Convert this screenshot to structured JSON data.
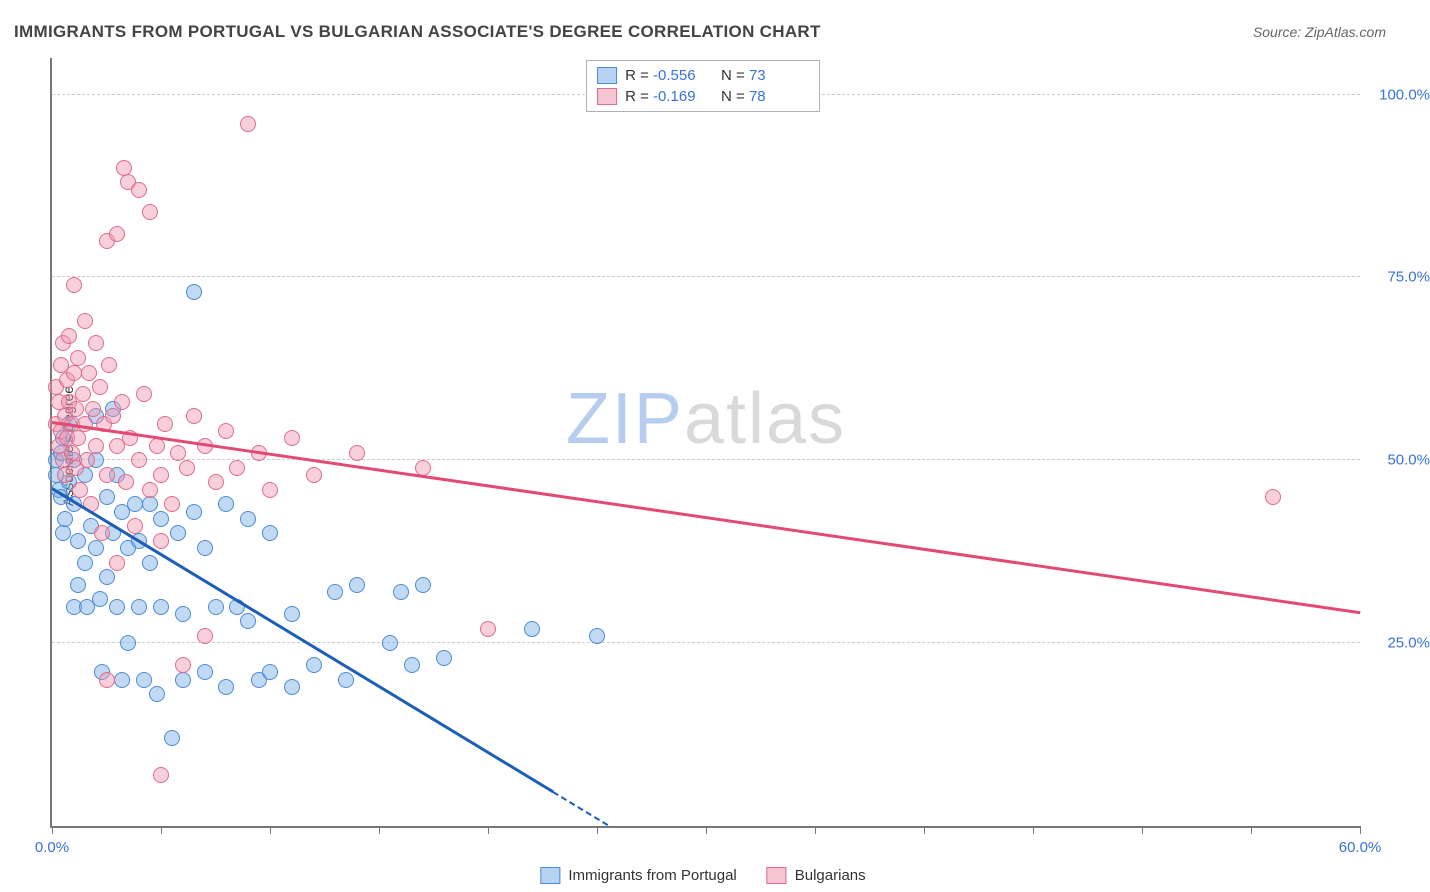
{
  "title": "IMMIGRANTS FROM PORTUGAL VS BULGARIAN ASSOCIATE'S DEGREE CORRELATION CHART",
  "source": "Source: ZipAtlas.com",
  "ylabel": "Associate's Degree",
  "watermark": {
    "pre": "ZIP",
    "post": "atlas",
    "pre_color": "#b7cdef",
    "post_color": "#d9d9d9"
  },
  "chart": {
    "type": "scatter",
    "background_color": "#ffffff",
    "grid_color": "#cccccc",
    "axis_color": "#777777",
    "tick_label_color": "#3973d4",
    "xlim": [
      0,
      60
    ],
    "ylim": [
      0,
      105
    ],
    "xticks": [
      0,
      5,
      10,
      15,
      20,
      25,
      30,
      35,
      40,
      45,
      50,
      55,
      60
    ],
    "xtick_labels": {
      "0": "0.0%",
      "60": "60.0%"
    },
    "yticks": [
      25,
      50,
      75,
      100
    ],
    "ytick_labels": {
      "25": "25.0%",
      "50": "50.0%",
      "75": "75.0%",
      "100": "100.0%"
    },
    "series": [
      {
        "name": "Immigrants from Portugal",
        "key": "portugal",
        "marker_fill": "rgba(120,170,230,0.45)",
        "marker_stroke": "#4a8bd6",
        "swatch_fill": "#b8d2f2",
        "swatch_stroke": "#4a8bd6",
        "R": "-0.556",
        "N": "73",
        "trend": {
          "x1": 0,
          "y1": 46,
          "x2": 25.5,
          "y2": 0,
          "color": "#1d5fb8",
          "dash_after_x": 23
        },
        "points": [
          [
            0.2,
            50
          ],
          [
            0.2,
            48
          ],
          [
            0.3,
            46
          ],
          [
            0.4,
            51
          ],
          [
            0.4,
            45
          ],
          [
            0.5,
            40
          ],
          [
            0.5,
            53
          ],
          [
            0.6,
            42
          ],
          [
            0.8,
            47
          ],
          [
            0.8,
            55
          ],
          [
            1.0,
            50
          ],
          [
            1.0,
            44
          ],
          [
            1.0,
            30
          ],
          [
            1.2,
            39
          ],
          [
            1.2,
            33
          ],
          [
            1.5,
            48
          ],
          [
            1.5,
            36
          ],
          [
            1.6,
            30
          ],
          [
            1.8,
            41
          ],
          [
            2.0,
            56
          ],
          [
            2.0,
            50
          ],
          [
            2.0,
            38
          ],
          [
            2.2,
            31
          ],
          [
            2.3,
            21
          ],
          [
            2.5,
            34
          ],
          [
            2.5,
            45
          ],
          [
            2.8,
            57
          ],
          [
            2.8,
            40
          ],
          [
            3.0,
            48
          ],
          [
            3.0,
            30
          ],
          [
            3.2,
            43
          ],
          [
            3.2,
            20
          ],
          [
            3.5,
            38
          ],
          [
            3.5,
            25
          ],
          [
            3.8,
            44
          ],
          [
            4.0,
            39
          ],
          [
            4.0,
            30
          ],
          [
            4.2,
            20
          ],
          [
            4.5,
            36
          ],
          [
            4.5,
            44
          ],
          [
            4.8,
            18
          ],
          [
            5.0,
            42
          ],
          [
            5.0,
            30
          ],
          [
            5.5,
            12
          ],
          [
            5.8,
            40
          ],
          [
            6.0,
            29
          ],
          [
            6.0,
            20
          ],
          [
            6.5,
            43
          ],
          [
            6.5,
            73
          ],
          [
            7.0,
            38
          ],
          [
            7.0,
            21
          ],
          [
            7.5,
            30
          ],
          [
            8.0,
            44
          ],
          [
            8.0,
            19
          ],
          [
            8.5,
            30
          ],
          [
            9.0,
            42
          ],
          [
            9.0,
            28
          ],
          [
            9.5,
            20
          ],
          [
            10.0,
            40
          ],
          [
            10.0,
            21
          ],
          [
            11.0,
            29
          ],
          [
            11.0,
            19
          ],
          [
            12.0,
            22
          ],
          [
            13.0,
            32
          ],
          [
            13.5,
            20
          ],
          [
            14.0,
            33
          ],
          [
            15.5,
            25
          ],
          [
            16.0,
            32
          ],
          [
            16.5,
            22
          ],
          [
            17.0,
            33
          ],
          [
            18.0,
            23
          ],
          [
            22.0,
            27
          ],
          [
            25.0,
            26
          ]
        ]
      },
      {
        "name": "Bulgarians",
        "key": "bulgarians",
        "marker_fill": "rgba(240,150,175,0.45)",
        "marker_stroke": "#e26a8c",
        "swatch_fill": "#f6c5d4",
        "swatch_stroke": "#e26a8c",
        "R": "-0.169",
        "N": "78",
        "trend": {
          "x1": 0,
          "y1": 55,
          "x2": 60,
          "y2": 29,
          "color": "#e24a74",
          "dash_after_x": 60
        },
        "points": [
          [
            0.2,
            55
          ],
          [
            0.2,
            60
          ],
          [
            0.3,
            52
          ],
          [
            0.3,
            58
          ],
          [
            0.4,
            54
          ],
          [
            0.4,
            63
          ],
          [
            0.5,
            50
          ],
          [
            0.5,
            66
          ],
          [
            0.6,
            56
          ],
          [
            0.6,
            48
          ],
          [
            0.7,
            61
          ],
          [
            0.7,
            53
          ],
          [
            0.8,
            58
          ],
          [
            0.8,
            67
          ],
          [
            0.9,
            51
          ],
          [
            0.9,
            55
          ],
          [
            1.0,
            62
          ],
          [
            1.0,
            74
          ],
          [
            1.1,
            49
          ],
          [
            1.1,
            57
          ],
          [
            1.2,
            53
          ],
          [
            1.2,
            64
          ],
          [
            1.3,
            46
          ],
          [
            1.4,
            59
          ],
          [
            1.5,
            69
          ],
          [
            1.5,
            55
          ],
          [
            1.6,
            50
          ],
          [
            1.7,
            62
          ],
          [
            1.8,
            44
          ],
          [
            1.9,
            57
          ],
          [
            2.0,
            52
          ],
          [
            2.0,
            66
          ],
          [
            2.2,
            60
          ],
          [
            2.3,
            40
          ],
          [
            2.4,
            55
          ],
          [
            2.5,
            80
          ],
          [
            2.5,
            48
          ],
          [
            2.6,
            63
          ],
          [
            2.8,
            56
          ],
          [
            3.0,
            81
          ],
          [
            3.0,
            52
          ],
          [
            3.0,
            36
          ],
          [
            3.2,
            58
          ],
          [
            3.3,
            90
          ],
          [
            3.4,
            47
          ],
          [
            3.5,
            88
          ],
          [
            3.6,
            53
          ],
          [
            3.8,
            41
          ],
          [
            4.0,
            87
          ],
          [
            4.0,
            50
          ],
          [
            4.2,
            59
          ],
          [
            4.5,
            46
          ],
          [
            4.5,
            84
          ],
          [
            4.8,
            52
          ],
          [
            5.0,
            48
          ],
          [
            5.0,
            39
          ],
          [
            5.2,
            55
          ],
          [
            5.5,
            44
          ],
          [
            5.8,
            51
          ],
          [
            6.0,
            22
          ],
          [
            6.2,
            49
          ],
          [
            6.5,
            56
          ],
          [
            7.0,
            26
          ],
          [
            7.0,
            52
          ],
          [
            7.5,
            47
          ],
          [
            8.0,
            54
          ],
          [
            8.5,
            49
          ],
          [
            9.0,
            96
          ],
          [
            9.5,
            51
          ],
          [
            10.0,
            46
          ],
          [
            11.0,
            53
          ],
          [
            12.0,
            48
          ],
          [
            14.0,
            51
          ],
          [
            17.0,
            49
          ],
          [
            20.0,
            27
          ],
          [
            56.0,
            45
          ],
          [
            2.5,
            20
          ],
          [
            5.0,
            7
          ]
        ]
      }
    ]
  },
  "legend_bottom": [
    {
      "label": "Immigrants from Portugal",
      "series": "portugal"
    },
    {
      "label": "Bulgarians",
      "series": "bulgarians"
    }
  ]
}
